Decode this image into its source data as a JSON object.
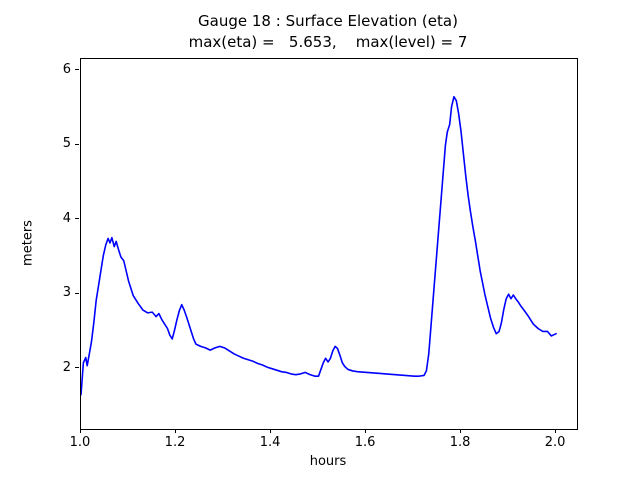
{
  "chart_data": {
    "type": "line",
    "title": "Gauge 18 : Surface Elevation (eta)",
    "subtitle": "max(eta) =   5.653,    max(level) = 7",
    "xlabel": "hours",
    "ylabel": "meters",
    "xlim": [
      1.0,
      2.044
    ],
    "ylim": [
      1.19,
      6.16
    ],
    "xticks": [
      1.0,
      1.2,
      1.4,
      1.6,
      1.8,
      2.0
    ],
    "xtick_labels": [
      "1.0",
      "1.2",
      "1.4",
      "1.6",
      "1.8",
      "2.0"
    ],
    "yticks": [
      2,
      3,
      4,
      5,
      6
    ],
    "ytick_labels": [
      "2",
      "3",
      "4",
      "5",
      "6"
    ],
    "grid": false,
    "legend": "none",
    "line_color": "#0000ff",
    "background_color": "#ffffff",
    "max_eta": 5.653,
    "max_level": 7,
    "series": [
      {
        "name": "eta",
        "points": [
          [
            1.0,
            1.65
          ],
          [
            1.005,
            2.08
          ],
          [
            1.01,
            2.15
          ],
          [
            1.013,
            2.04
          ],
          [
            1.017,
            2.18
          ],
          [
            1.022,
            2.36
          ],
          [
            1.027,
            2.62
          ],
          [
            1.032,
            2.92
          ],
          [
            1.037,
            3.12
          ],
          [
            1.042,
            3.32
          ],
          [
            1.047,
            3.52
          ],
          [
            1.052,
            3.66
          ],
          [
            1.057,
            3.75
          ],
          [
            1.061,
            3.69
          ],
          [
            1.065,
            3.76
          ],
          [
            1.07,
            3.64
          ],
          [
            1.074,
            3.71
          ],
          [
            1.079,
            3.6
          ],
          [
            1.084,
            3.5
          ],
          [
            1.09,
            3.45
          ],
          [
            1.1,
            3.18
          ],
          [
            1.11,
            2.98
          ],
          [
            1.12,
            2.88
          ],
          [
            1.13,
            2.79
          ],
          [
            1.14,
            2.75
          ],
          [
            1.15,
            2.76
          ],
          [
            1.158,
            2.7
          ],
          [
            1.164,
            2.74
          ],
          [
            1.17,
            2.66
          ],
          [
            1.176,
            2.6
          ],
          [
            1.182,
            2.54
          ],
          [
            1.187,
            2.45
          ],
          [
            1.192,
            2.4
          ],
          [
            1.197,
            2.52
          ],
          [
            1.202,
            2.66
          ],
          [
            1.207,
            2.78
          ],
          [
            1.212,
            2.86
          ],
          [
            1.217,
            2.79
          ],
          [
            1.222,
            2.7
          ],
          [
            1.227,
            2.6
          ],
          [
            1.232,
            2.5
          ],
          [
            1.237,
            2.4
          ],
          [
            1.242,
            2.33
          ],
          [
            1.252,
            2.3
          ],
          [
            1.262,
            2.28
          ],
          [
            1.272,
            2.25
          ],
          [
            1.282,
            2.28
          ],
          [
            1.292,
            2.3
          ],
          [
            1.302,
            2.28
          ],
          [
            1.312,
            2.24
          ],
          [
            1.322,
            2.2
          ],
          [
            1.332,
            2.17
          ],
          [
            1.342,
            2.14
          ],
          [
            1.352,
            2.12
          ],
          [
            1.362,
            2.1
          ],
          [
            1.372,
            2.07
          ],
          [
            1.382,
            2.05
          ],
          [
            1.392,
            2.02
          ],
          [
            1.402,
            2.0
          ],
          [
            1.412,
            1.98
          ],
          [
            1.422,
            1.96
          ],
          [
            1.432,
            1.95
          ],
          [
            1.442,
            1.93
          ],
          [
            1.452,
            1.92
          ],
          [
            1.462,
            1.93
          ],
          [
            1.472,
            1.95
          ],
          [
            1.482,
            1.92
          ],
          [
            1.492,
            1.9
          ],
          [
            1.5,
            1.9
          ],
          [
            1.505,
            1.99
          ],
          [
            1.51,
            2.08
          ],
          [
            1.515,
            2.14
          ],
          [
            1.52,
            2.09
          ],
          [
            1.525,
            2.14
          ],
          [
            1.53,
            2.24
          ],
          [
            1.535,
            2.3
          ],
          [
            1.54,
            2.27
          ],
          [
            1.545,
            2.18
          ],
          [
            1.55,
            2.08
          ],
          [
            1.555,
            2.03
          ],
          [
            1.562,
            1.99
          ],
          [
            1.572,
            1.97
          ],
          [
            1.582,
            1.96
          ],
          [
            1.602,
            1.95
          ],
          [
            1.622,
            1.94
          ],
          [
            1.642,
            1.93
          ],
          [
            1.662,
            1.92
          ],
          [
            1.682,
            1.91
          ],
          [
            1.702,
            1.9
          ],
          [
            1.712,
            1.9
          ],
          [
            1.722,
            1.91
          ],
          [
            1.727,
            1.97
          ],
          [
            1.732,
            2.2
          ],
          [
            1.737,
            2.6
          ],
          [
            1.742,
            3.0
          ],
          [
            1.747,
            3.4
          ],
          [
            1.752,
            3.8
          ],
          [
            1.757,
            4.2
          ],
          [
            1.762,
            4.6
          ],
          [
            1.767,
            5.0
          ],
          [
            1.771,
            5.18
          ],
          [
            1.776,
            5.28
          ],
          [
            1.78,
            5.52
          ],
          [
            1.785,
            5.653
          ],
          [
            1.79,
            5.6
          ],
          [
            1.795,
            5.42
          ],
          [
            1.8,
            5.18
          ],
          [
            1.805,
            4.88
          ],
          [
            1.81,
            4.58
          ],
          [
            1.815,
            4.32
          ],
          [
            1.82,
            4.1
          ],
          [
            1.825,
            3.9
          ],
          [
            1.83,
            3.72
          ],
          [
            1.84,
            3.32
          ],
          [
            1.85,
            3.0
          ],
          [
            1.856,
            2.84
          ],
          [
            1.862,
            2.68
          ],
          [
            1.868,
            2.56
          ],
          [
            1.874,
            2.47
          ],
          [
            1.88,
            2.5
          ],
          [
            1.885,
            2.62
          ],
          [
            1.89,
            2.8
          ],
          [
            1.895,
            2.94
          ],
          [
            1.9,
            3.0
          ],
          [
            1.905,
            2.94
          ],
          [
            1.91,
            2.99
          ],
          [
            1.915,
            2.94
          ],
          [
            1.92,
            2.9
          ],
          [
            1.926,
            2.84
          ],
          [
            1.932,
            2.79
          ],
          [
            1.942,
            2.7
          ],
          [
            1.952,
            2.6
          ],
          [
            1.962,
            2.54
          ],
          [
            1.972,
            2.5
          ],
          [
            1.982,
            2.5
          ],
          [
            1.99,
            2.44
          ],
          [
            2.0,
            2.47
          ]
        ]
      }
    ]
  }
}
